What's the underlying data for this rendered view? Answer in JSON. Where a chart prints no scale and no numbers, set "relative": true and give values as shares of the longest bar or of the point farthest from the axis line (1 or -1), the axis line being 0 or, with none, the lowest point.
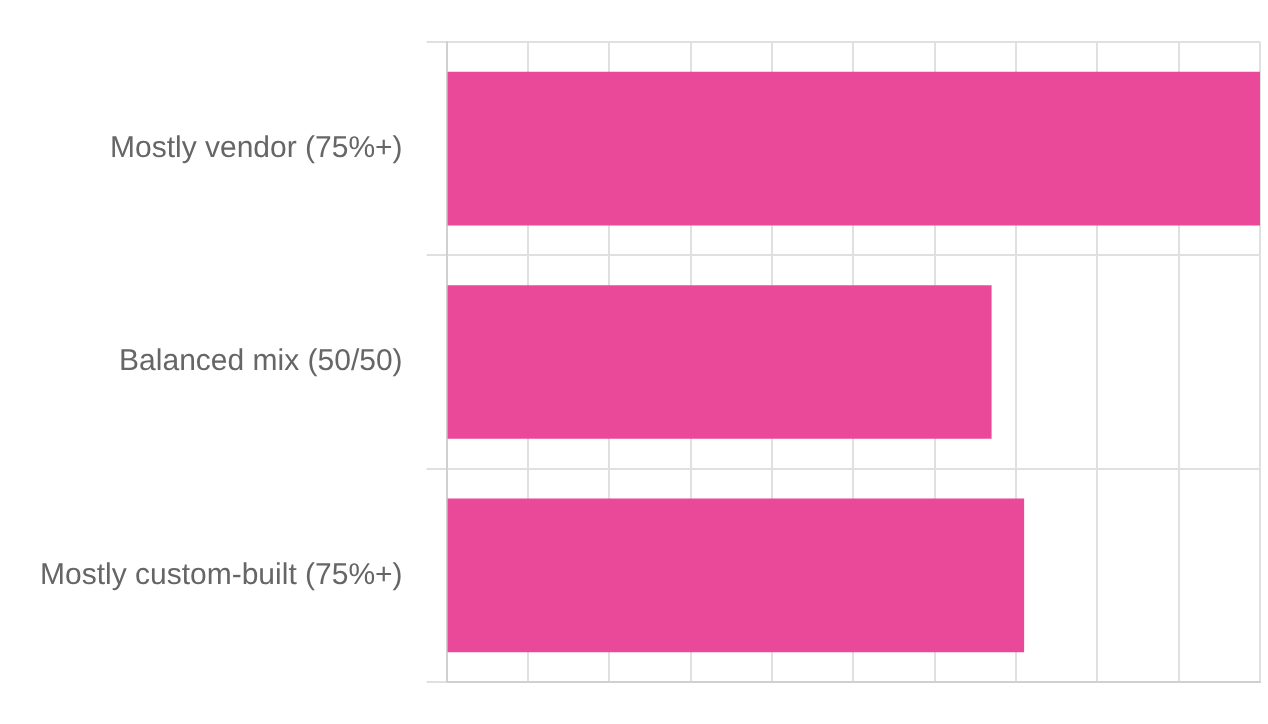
{
  "chart_data": {
    "type": "bar",
    "orientation": "horizontal",
    "relative": true,
    "grid": true,
    "categories": [
      "Mostly vendor (75%+)",
      "Balanced mix (50/50)",
      "Mostly custom-built (75%+)"
    ],
    "values": [
      1,
      0.67,
      0.71
    ],
    "color": "#ea4899"
  }
}
